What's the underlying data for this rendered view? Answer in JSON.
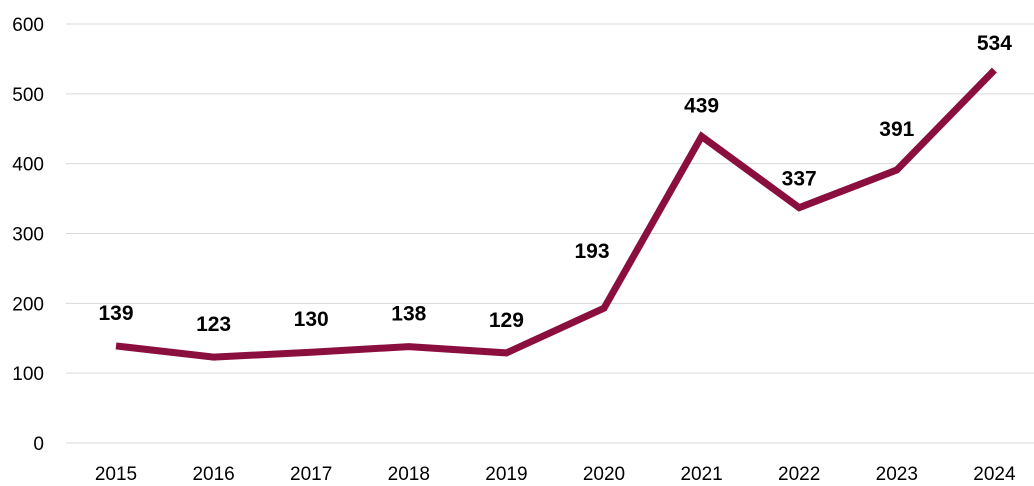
{
  "chart_data": {
    "type": "line",
    "title": "",
    "xlabel": "",
    "ylabel": "",
    "categories": [
      "2015",
      "2016",
      "2017",
      "2018",
      "2019",
      "2020",
      "2021",
      "2022",
      "2023",
      "2024"
    ],
    "series": [
      {
        "values": [
          139,
          123,
          130,
          138,
          129,
          193,
          439,
          337,
          391,
          534
        ],
        "color": "#8b0f3e"
      }
    ],
    "ylim": [
      0,
      600
    ],
    "y_ticks": [
      "0",
      "100",
      "200",
      "300",
      "400",
      "500",
      "600"
    ],
    "data_labels": [
      "139",
      "123",
      "130",
      "138",
      "129",
      "193",
      "439",
      "337",
      "391",
      "534"
    ],
    "grid": "horizontal",
    "legend": "none"
  }
}
